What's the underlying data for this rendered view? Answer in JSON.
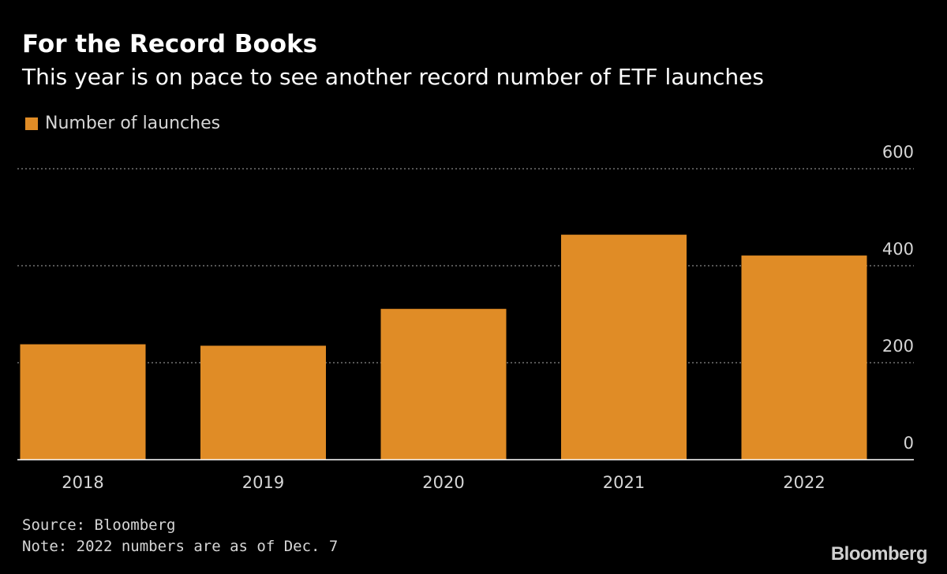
{
  "chart_data": {
    "type": "bar",
    "title": "For the Record Books",
    "subtitle": "This year is on pace to see another record number of ETF launches",
    "categories": [
      "2018",
      "2019",
      "2020",
      "2021",
      "2022"
    ],
    "series": [
      {
        "name": "Number of launches",
        "values": [
          238,
          235,
          311,
          464,
          421
        ],
        "color": "#e08c26"
      }
    ],
    "y_ticks": [
      "600",
      "400",
      "200",
      "0"
    ],
    "ylim": [
      0,
      600
    ],
    "y_axis_side": "right",
    "grid": true,
    "legend_position": "top-left",
    "xlabel": "",
    "ylabel": ""
  },
  "footer": {
    "source": "Source: Bloomberg",
    "note": "Note: 2022 numbers are as of Dec. 7"
  },
  "brand": {
    "logo_text": "Bloomberg"
  },
  "colors": {
    "background": "#000000",
    "bar": "#e08c26",
    "grid": "#888888",
    "baseline": "#ffffff",
    "text": "#ffffff",
    "muted_text": "#d6d6d6"
  }
}
